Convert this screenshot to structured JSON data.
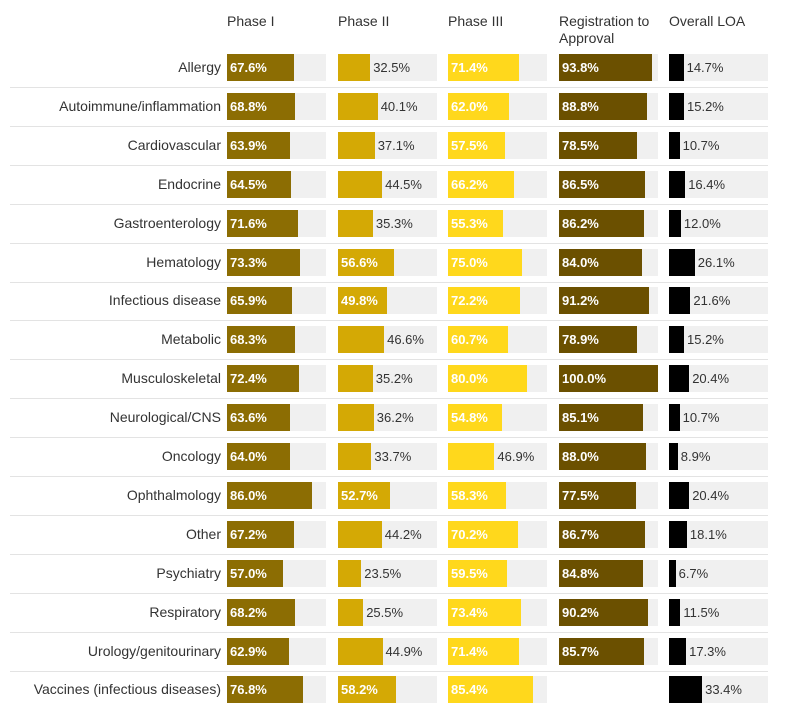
{
  "chart_data": {
    "type": "table",
    "title": "",
    "columns": [
      {
        "key": "phase1",
        "label": "Phase I",
        "color": "#8c6d03",
        "label_inside_threshold": 50
      },
      {
        "key": "phase2",
        "label": "Phase II",
        "color": "#d4a905",
        "label_inside_threshold": 48
      },
      {
        "key": "phase3",
        "label": "Phase III",
        "color": "#ffd81c",
        "label_inside_threshold": 48
      },
      {
        "key": "registration",
        "label": "Registration to Approval",
        "color": "#6b5000",
        "label_inside_threshold": 50
      },
      {
        "key": "overall",
        "label": "Overall LOA",
        "color": "#000000",
        "label_inside_threshold": 100
      }
    ],
    "categories": [
      "Allergy",
      "Autoimmune/inflammation",
      "Cardiovascular",
      "Endocrine",
      "Gastroenterology",
      "Hematology",
      "Infectious disease",
      "Metabolic",
      "Musculoskeletal",
      "Neurological/CNS",
      "Oncology",
      "Ophthalmology",
      "Other",
      "Psychiatry",
      "Respiratory",
      "Urology/genitourinary",
      "Vaccines (infectious diseases)"
    ],
    "series": [
      {
        "name": "Phase I",
        "values": [
          67.6,
          68.8,
          63.9,
          64.5,
          71.6,
          73.3,
          65.9,
          68.3,
          72.4,
          63.6,
          64.0,
          86.0,
          67.2,
          57.0,
          68.2,
          62.9,
          76.8
        ]
      },
      {
        "name": "Phase II",
        "values": [
          32.5,
          40.1,
          37.1,
          44.5,
          35.3,
          56.6,
          49.8,
          46.6,
          35.2,
          36.2,
          33.7,
          52.7,
          44.2,
          23.5,
          25.5,
          44.9,
          58.2
        ]
      },
      {
        "name": "Phase III",
        "values": [
          71.4,
          62.0,
          57.5,
          66.2,
          55.3,
          75.0,
          72.2,
          60.7,
          80.0,
          54.8,
          46.9,
          58.3,
          70.2,
          59.5,
          73.4,
          71.4,
          85.4
        ]
      },
      {
        "name": "Registration to Approval",
        "values": [
          93.8,
          88.8,
          78.5,
          86.5,
          86.2,
          84.0,
          91.2,
          78.9,
          100.0,
          85.1,
          88.0,
          77.5,
          86.7,
          84.8,
          90.2,
          85.7,
          null
        ]
      },
      {
        "name": "Overall LOA",
        "values": [
          14.7,
          15.2,
          10.7,
          16.4,
          12.0,
          26.1,
          21.6,
          15.2,
          20.4,
          10.7,
          8.9,
          20.4,
          18.1,
          6.7,
          11.5,
          17.3,
          33.4
        ]
      }
    ],
    "value_unit": "%",
    "xlim": [
      0,
      100
    ]
  }
}
